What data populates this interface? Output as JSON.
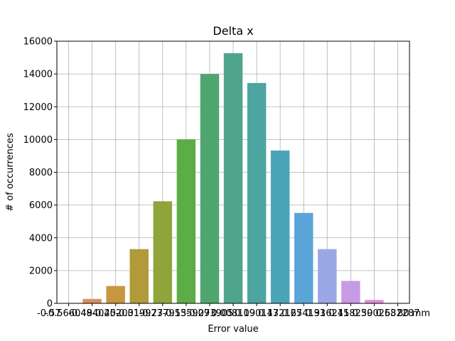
{
  "chart_data": {
    "type": "bar",
    "title": "Delta x",
    "xlabel": "Error value",
    "ylabel": "# of occurrences",
    "ylim": [
      0,
      16000
    ],
    "yticks": [
      0,
      2000,
      4000,
      6000,
      8000,
      10000,
      12000,
      14000,
      16000
    ],
    "ytick_labels": [
      "0",
      "2000",
      "4000",
      "6000",
      "8000",
      "10000",
      "12000",
      "14000",
      "16000"
    ],
    "x_edge_label_start": "-0.57",
    "x_edge_label_end": "80 mm",
    "xtick_labels": [
      "-0.566049",
      "-0.484025",
      "-0.402001",
      "-0.319977",
      "-0.237953",
      "-0.155929",
      "-0.073905",
      "0.008119",
      "0.090143",
      "0.172167",
      "0.254191",
      "0.336215",
      "0.418239",
      "0.500263",
      "0.582287"
    ],
    "values": [
      0,
      270,
      1060,
      3310,
      6230,
      10010,
      14000,
      15270,
      13450,
      9330,
      5520,
      3310,
      1370,
      210,
      0
    ],
    "colors": [
      "#e8837b",
      "#d88f5a",
      "#c7963f",
      "#b09a3a",
      "#8fa53c",
      "#5cad45",
      "#4fa56e",
      "#4ea58b",
      "#4ca5a1",
      "#4ba5b9",
      "#5aa5d8",
      "#9aa7e6",
      "#c79ae6",
      "#e08fd8",
      "#e889b8"
    ],
    "grid": true,
    "legend": "none"
  }
}
